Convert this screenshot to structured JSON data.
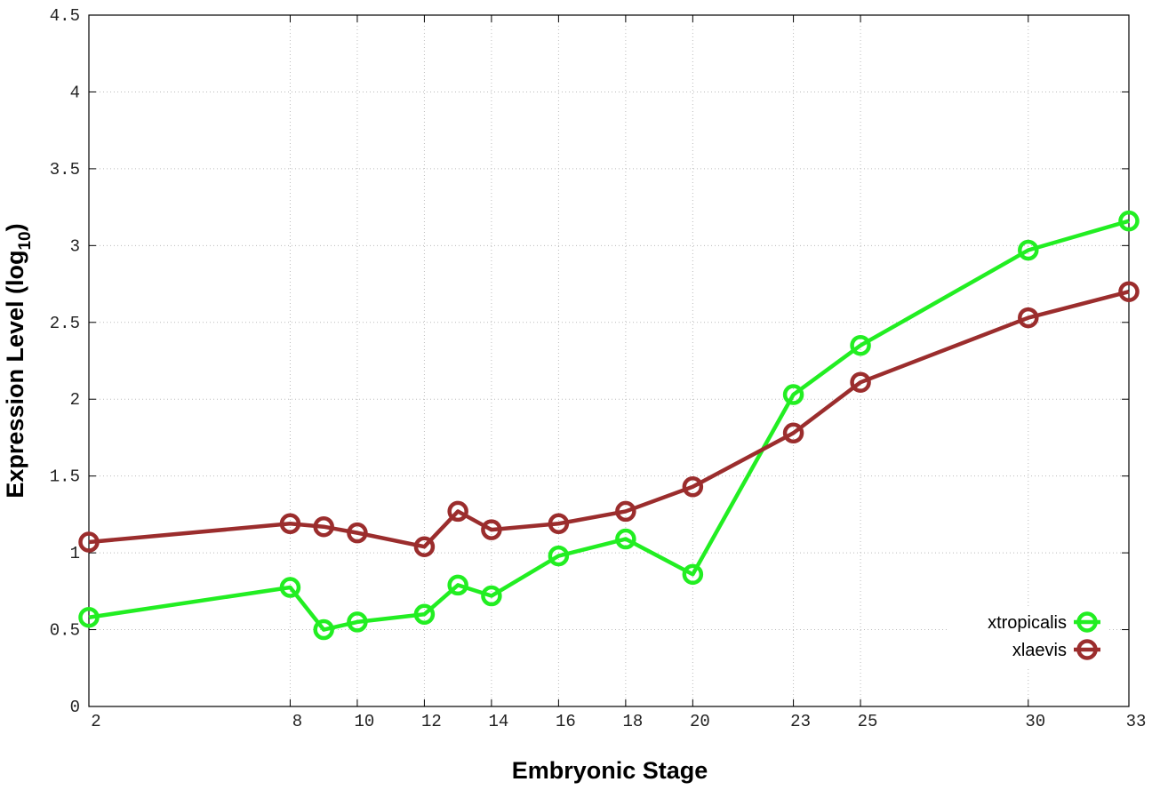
{
  "chart_data": {
    "type": "line",
    "xlabel": "Embryonic Stage",
    "ylabel": "Expression Level (log",
    "ylabel_sub": "10",
    "ylabel_end": ")",
    "x": [
      2,
      8,
      9,
      10,
      12,
      13,
      14,
      16,
      18,
      20,
      23,
      25,
      30,
      33
    ],
    "series": [
      {
        "name": "xtropicalis",
        "color": "#22ee22",
        "values": [
          0.58,
          0.775,
          0.5,
          0.55,
          0.6,
          0.79,
          0.72,
          0.98,
          1.09,
          0.86,
          2.03,
          2.35,
          2.97,
          3.16
        ]
      },
      {
        "name": "xlaevis",
        "color": "#9b2d2d",
        "values": [
          1.07,
          1.19,
          1.17,
          1.13,
          1.04,
          1.27,
          1.15,
          1.19,
          1.27,
          1.43,
          1.78,
          2.11,
          2.53,
          2.7
        ]
      }
    ],
    "xlim": [
      2,
      33
    ],
    "xticks": [
      2,
      8,
      10,
      12,
      14,
      16,
      18,
      20,
      23,
      25,
      30,
      33
    ],
    "ylim": [
      0,
      4.5
    ],
    "yticks": [
      0,
      0.5,
      1,
      1.5,
      2,
      2.5,
      3,
      3.5,
      4,
      4.5
    ],
    "grid": true,
    "legend": "lower-right"
  }
}
